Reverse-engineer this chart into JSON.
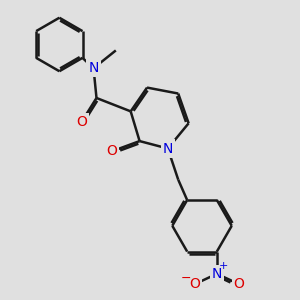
{
  "background_color": "#e0e0e0",
  "bond_color": "#1a1a1a",
  "N_color": "#0000dd",
  "O_color": "#dd0000",
  "bond_width": 1.8,
  "font_size": 10,
  "figsize": [
    3.0,
    3.0
  ],
  "dpi": 100,
  "xlim": [
    0,
    10
  ],
  "ylim": [
    0,
    10
  ]
}
